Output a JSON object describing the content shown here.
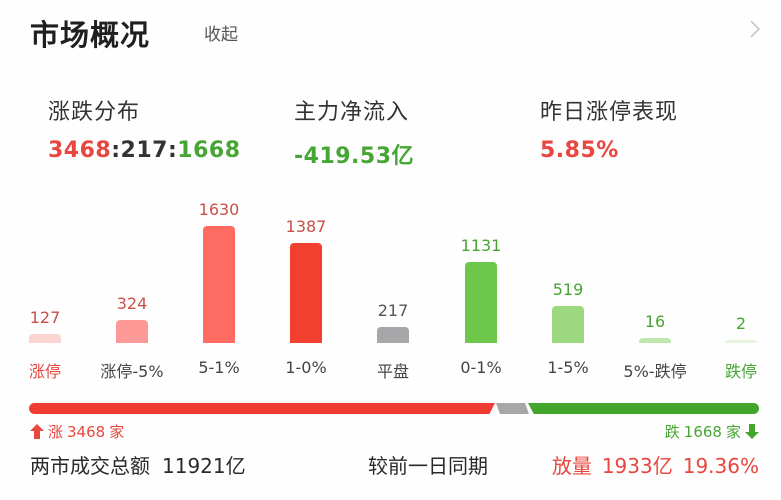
{
  "header": {
    "title": "市场概况",
    "collapse_label": "收起",
    "chevron_icon": "chevron-right-icon"
  },
  "stats": {
    "distribution": {
      "label": "涨跌分布",
      "up": "3468",
      "sep1": ":",
      "flat": "217",
      "sep2": ":",
      "down": "1668"
    },
    "main_inflow": {
      "label": "主力净流入",
      "value": "-419.53亿"
    },
    "yesterday_limit_up": {
      "label": "昨日涨停表现",
      "value": "5.85%"
    }
  },
  "chart_data": {
    "type": "bar",
    "title": "涨跌分布",
    "categories": [
      "涨停",
      "涨停-5%",
      "5-1%",
      "1-0%",
      "平盘",
      "0-1%",
      "1-5%",
      "5%-跌停",
      "跌停"
    ],
    "values": [
      127,
      324,
      1630,
      1387,
      217,
      1131,
      519,
      16,
      2
    ],
    "value_labels": [
      "127",
      "324",
      "1630",
      "1387",
      "217",
      "1131",
      "519",
      "16",
      "2"
    ],
    "colors": [
      "#fbd3d1",
      "#fd9a97",
      "#fd6b63",
      "#f2402f",
      "#a7a7a9",
      "#6cc74a",
      "#9bd87f",
      "#bfe7ad",
      "#e6f4df"
    ],
    "label_colors": [
      "#e8463e",
      "#444444",
      "#444444",
      "#444444",
      "#444444",
      "#444444",
      "#444444",
      "#444444",
      "#46a633"
    ],
    "number_colors": [
      "#c9504a",
      "#c9504a",
      "#c9504a",
      "#c9504a",
      "#555555",
      "#46a633",
      "#46a633",
      "#46a633",
      "#46a633"
    ],
    "xlabel": "",
    "ylabel": "",
    "grid": false
  },
  "progress": {
    "up_label": "涨",
    "up_count": "3468",
    "up_unit": "家",
    "down_label": "跌",
    "down_count": "1668",
    "down_unit": "家",
    "colors": {
      "up": "#ef3b32",
      "flat": "#a7a7a9",
      "down": "#42a52c"
    }
  },
  "turnover": {
    "label": "两市成交总额",
    "value": "11921亿",
    "compare_label": "较前一日同期",
    "change_label": "放量",
    "change_value": "1933亿",
    "change_pct": "19.36%"
  }
}
